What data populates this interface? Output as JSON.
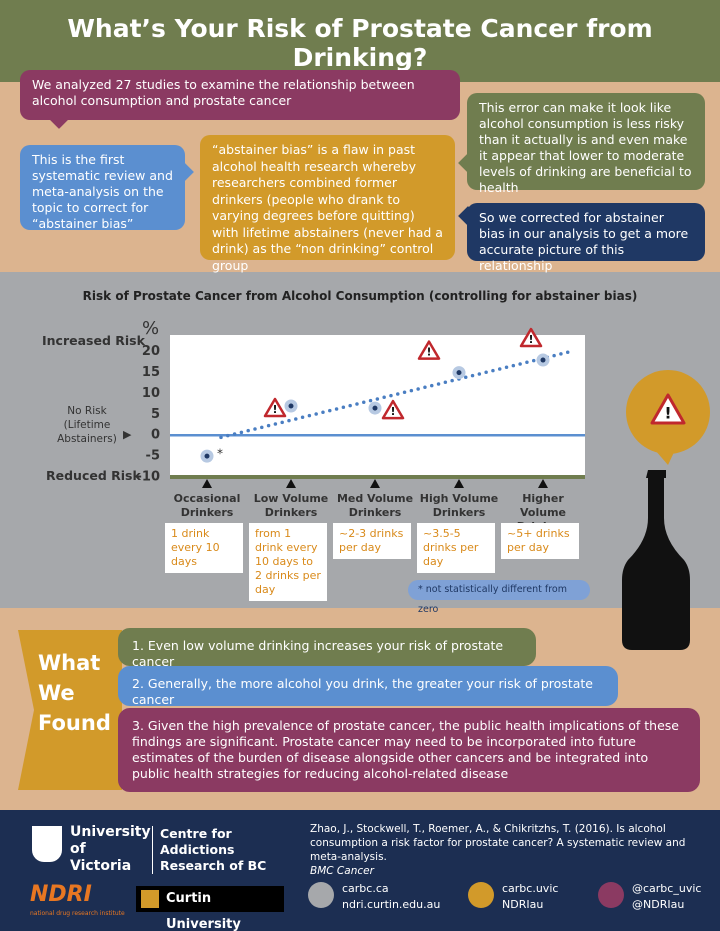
{
  "header": {
    "title": "What’s Your Risk of Prostate Cancer from Drinking?"
  },
  "intro": {
    "studies": "We analyzed 27 studies to examine the relationship between alcohol consumption and prostate cancer",
    "systematic": "This is the first systematic review and meta-analysis on the topic to correct for “abstainer bias”",
    "abstainer_bias": "“abstainer bias” is a flaw in past alcohol health research whereby researchers combined former drinkers (people who drank to varying degrees before quitting) with lifetime abstainers (never had a drink) as the “non drinking” control group",
    "error": "This error can make it look like alcohol consumption is less risky than it actually is and even make it appear that lower to moderate levels of drinking are beneficial to health",
    "corrected": "So we corrected for abstainer bias in our analysis to get a more accurate picture of this relationship"
  },
  "chart_data": {
    "type": "scatter",
    "title": "Risk of Prostate Cancer from Alcohol Consumption (controlling for abstainer bias)",
    "categories": [
      "Occasional Drinkers",
      "Low Volume Drinkers",
      "Med Volume Drinkers",
      "High Volume Drinkers",
      "Higher Volume Drinkers"
    ],
    "descriptions": [
      "1 drink every 10 days",
      "from 1 drink every 10 days to 2 drinks per day",
      "~2-3 drinks per day",
      "~3.5-5 drinks per day",
      "~5+ drinks per day"
    ],
    "values": [
      -5,
      7,
      6.5,
      15,
      18
    ],
    "trend": [
      -0.5,
      20
    ],
    "color": "#1f3864",
    "unit_label": "%",
    "upper_label": "Increased Risk",
    "zero_label": "No Risk (Lifetime Abstainers)",
    "lower_label": "Reduced Risk",
    "footnote_marker": "*",
    "footnote": "not statistically different from zero",
    "ylim": [
      -10,
      24
    ],
    "yticks": [
      -10,
      -5,
      0,
      5,
      10,
      15,
      20
    ]
  },
  "findings": {
    "heading": "What We Found",
    "items": [
      "1.  Even low volume drinking increases your risk of prostate cancer",
      "2.  Generally, the more alcohol you drink, the greater your risk of prostate cancer",
      "3.  Given the high prevalence of prostate cancer, the public health implications of these findings are significant. Prostate cancer may need to be incorporated into future estimates of the burden of disease alongside other cancers and be integrated into public health strategies for reducing alcohol-related disease"
    ]
  },
  "footer": {
    "university": "University of Victoria",
    "centre": "Centre for Addictions Research of BC",
    "citation": "Zhao, J., Stockwell, T., Roemer, A., & Chikritzhs, T. (2016). Is alcohol consumption a risk factor for prostate cancer? A systematic review and meta-analysis.",
    "journal": "BMC Cancer",
    "ndri": "NDRI",
    "ndri_sub": "national drug research institute",
    "curtin": "Curtin University",
    "web": [
      "carbc.ca",
      "ndri.curtin.edu.au"
    ],
    "facebook": [
      "carbc.uvic",
      "NDRIau"
    ],
    "twitter": [
      "@carbc_uvic",
      "@NDRIau"
    ]
  }
}
